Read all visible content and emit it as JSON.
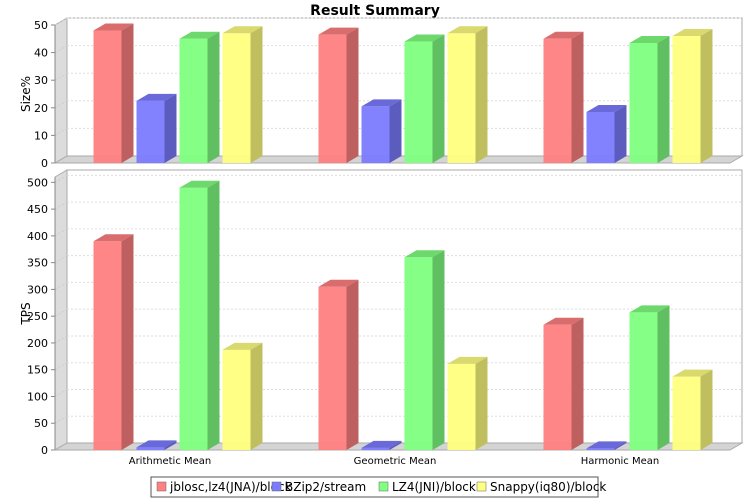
{
  "chart_data": {
    "type": "bar",
    "title": "Result Summary",
    "categories": [
      "Arithmetic Mean",
      "Geometric Mean",
      "Harmonic Mean"
    ],
    "legend_position": "bottom",
    "grid": true,
    "plots": [
      {
        "ylabel": "Size%",
        "ylim": [
          0,
          50
        ],
        "yticks": [
          0,
          10,
          20,
          30,
          40,
          50
        ],
        "series": [
          {
            "name": "jblosc,lz4(JNA)/block",
            "color": "#ff8080",
            "values": [
              48,
              46.5,
              45
            ]
          },
          {
            "name": "BZip2/stream",
            "color": "#7b7bff",
            "values": [
              22.5,
              20.5,
              18.5
            ]
          },
          {
            "name": "LZ4(JNI)/block",
            "color": "#80ff80",
            "values": [
              45,
              44,
              43.5
            ]
          },
          {
            "name": "Snappy(iq80)/block",
            "color": "#ffff80",
            "values": [
              47,
              47,
              46
            ]
          }
        ]
      },
      {
        "ylabel": "TPS",
        "ylim": [
          0,
          510
        ],
        "yticks": [
          0,
          50,
          100,
          150,
          200,
          250,
          300,
          350,
          400,
          450,
          500
        ],
        "series": [
          {
            "name": "jblosc,lz4(JNA)/block",
            "color": "#ff8080",
            "values": [
              390,
              305,
              234
            ]
          },
          {
            "name": "BZip2/stream",
            "color": "#7b7bff",
            "values": [
              5,
              4,
              3
            ]
          },
          {
            "name": "LZ4(JNI)/block",
            "color": "#80ff80",
            "values": [
              490,
              360,
              257
            ]
          },
          {
            "name": "Snappy(iq80)/block",
            "color": "#ffff80",
            "values": [
              187,
              161,
              137
            ]
          }
        ]
      }
    ]
  }
}
